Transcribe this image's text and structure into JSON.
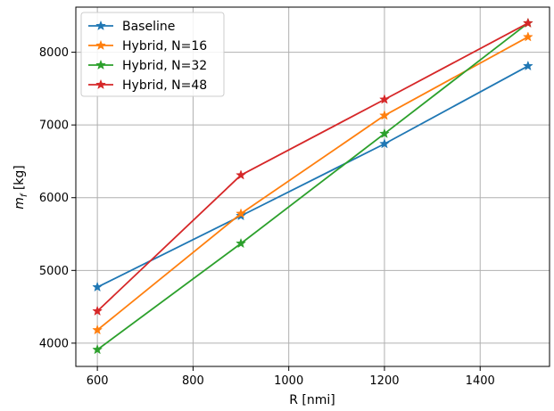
{
  "chart_data": {
    "type": "line",
    "title": "",
    "xlabel": "R [nmi]",
    "ylabel_main": "m",
    "ylabel_sub": "f",
    "ylabel_unit": " [kg]",
    "xlim": [
      555,
      1545
    ],
    "ylim": [
      3680,
      8620
    ],
    "xticks": [
      600,
      800,
      1000,
      1200,
      1400
    ],
    "yticks": [
      4000,
      5000,
      6000,
      7000,
      8000
    ],
    "grid": true,
    "legend_position": "upper-left",
    "marker": "star",
    "x": [
      600,
      900,
      1200,
      1500
    ],
    "series": [
      {
        "name": "Baseline",
        "color": "#1f77b4",
        "values": [
          4770,
          5750,
          6740,
          7810
        ]
      },
      {
        "name": "Hybrid, N=16",
        "color": "#ff7f0e",
        "values": [
          4180,
          5780,
          7130,
          8210
        ]
      },
      {
        "name": "Hybrid, N=32",
        "color": "#2ca02c",
        "values": [
          3910,
          5370,
          6880,
          8400
        ]
      },
      {
        "name": "Hybrid, N=48",
        "color": "#d62728",
        "values": [
          4440,
          6310,
          7350,
          8400
        ]
      }
    ]
  }
}
